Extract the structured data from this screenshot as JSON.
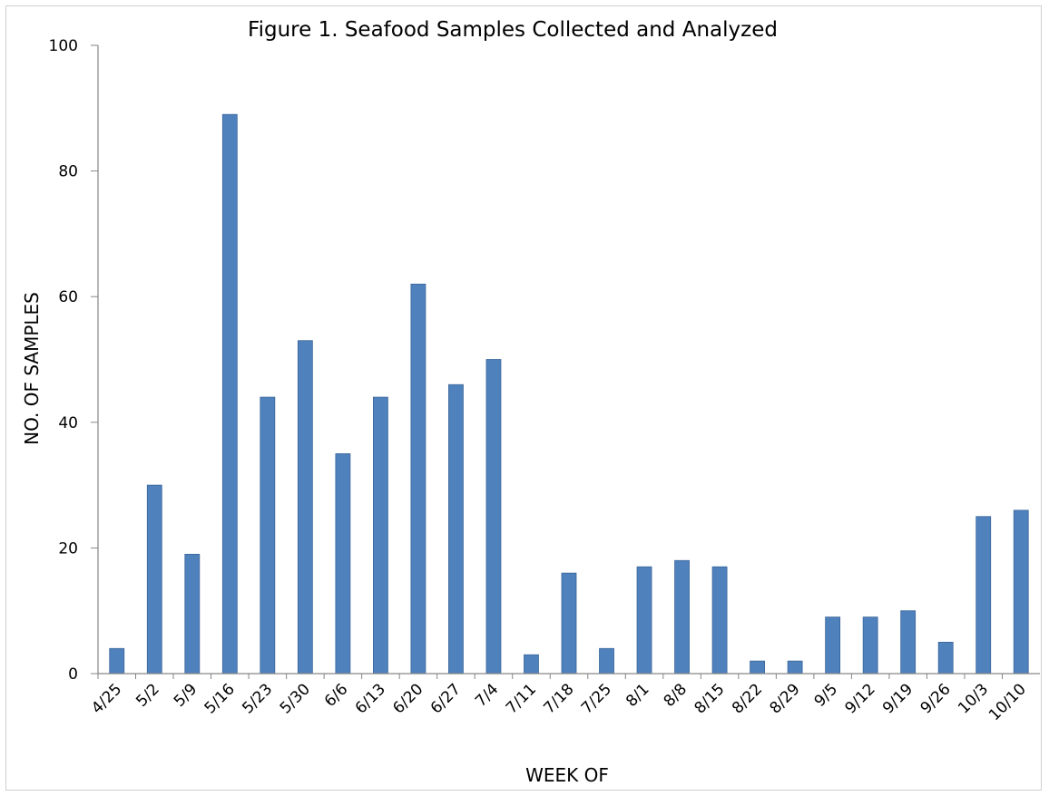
{
  "chart_data": {
    "type": "bar",
    "title": "Figure 1. Seafood Samples Collected and Analyzed",
    "xlabel": "WEEK OF",
    "ylabel": "NO. OF SAMPLES",
    "categories": [
      "4/25",
      "5/2",
      "5/9",
      "5/16",
      "5/23",
      "5/30",
      "6/6",
      "6/13",
      "6/20",
      "6/27",
      "7/4",
      "7/11",
      "7/18",
      "7/25",
      "8/1",
      "8/8",
      "8/15",
      "8/22",
      "8/29",
      "9/5",
      "9/12",
      "9/19",
      "9/26",
      "10/3",
      "10/10"
    ],
    "values": [
      4,
      30,
      19,
      89,
      44,
      53,
      35,
      44,
      62,
      46,
      50,
      3,
      16,
      4,
      17,
      18,
      17,
      2,
      2,
      9,
      9,
      10,
      5,
      25,
      26
    ],
    "ylim": [
      0,
      100
    ],
    "yticks": [
      0,
      20,
      40,
      60,
      80,
      100
    ],
    "grid": false,
    "legend": "none",
    "bar_color": "#4f81bd",
    "bar_edge_color": "#3a6599",
    "axis_color": "#868686"
  }
}
